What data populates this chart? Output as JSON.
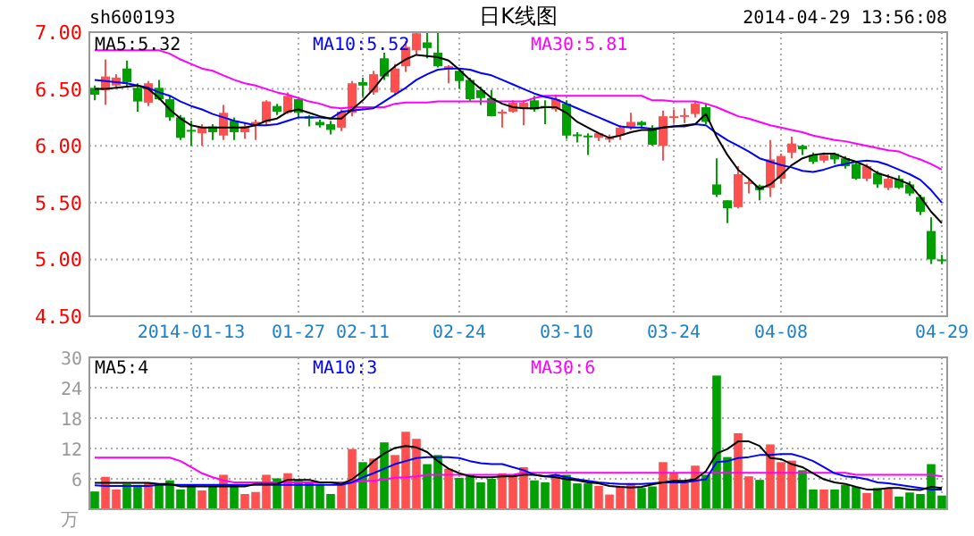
{
  "chart_data": [
    {
      "type": "candlestick",
      "title": "日K线图",
      "annotations": [
        "sh600193",
        "2014-04-29 13:56:08"
      ],
      "categories": [
        null,
        null,
        null,
        null,
        null,
        null,
        null,
        null,
        null,
        "2014-01-13",
        null,
        null,
        null,
        null,
        null,
        null,
        null,
        null,
        null,
        "01-27",
        null,
        null,
        null,
        null,
        null,
        "02-11",
        null,
        null,
        null,
        null,
        null,
        null,
        null,
        null,
        "02-24",
        null,
        null,
        null,
        null,
        null,
        null,
        null,
        null,
        null,
        "03-10",
        null,
        null,
        null,
        null,
        null,
        null,
        null,
        null,
        null,
        "03-24",
        null,
        null,
        null,
        null,
        null,
        null,
        null,
        null,
        null,
        "04-08",
        null,
        null,
        null,
        null,
        null,
        null,
        null,
        null,
        null,
        null,
        null,
        null,
        null,
        null,
        "04-29"
      ],
      "ohlc": [
        [
          6.51,
          6.53,
          6.4,
          6.45
        ],
        [
          6.49,
          6.76,
          6.36,
          6.61
        ],
        [
          6.53,
          6.63,
          6.5,
          6.6
        ],
        [
          6.68,
          6.75,
          6.52,
          6.56
        ],
        [
          6.51,
          6.55,
          6.3,
          6.39
        ],
        [
          6.38,
          6.57,
          6.35,
          6.55
        ],
        [
          6.51,
          6.58,
          6.4,
          6.41
        ],
        [
          6.41,
          6.44,
          6.22,
          6.25
        ],
        [
          6.25,
          6.27,
          6.05,
          6.07
        ],
        [
          6.14,
          6.22,
          6.0,
          6.13
        ],
        [
          6.11,
          6.19,
          6.0,
          6.16
        ],
        [
          6.17,
          6.19,
          6.05,
          6.12
        ],
        [
          6.09,
          6.36,
          6.05,
          6.29
        ],
        [
          6.22,
          6.25,
          6.05,
          6.12
        ],
        [
          6.12,
          6.2,
          6.06,
          6.17
        ],
        [
          6.18,
          6.23,
          6.05,
          6.21
        ],
        [
          6.21,
          6.4,
          6.18,
          6.39
        ],
        [
          6.35,
          6.37,
          6.27,
          6.3
        ],
        [
          6.29,
          6.47,
          6.28,
          6.44
        ],
        [
          6.41,
          6.42,
          6.25,
          6.29
        ],
        [
          6.26,
          6.27,
          6.17,
          6.24
        ],
        [
          6.21,
          6.23,
          6.16,
          6.18
        ],
        [
          6.19,
          6.22,
          6.1,
          6.14
        ],
        [
          6.16,
          6.32,
          6.13,
          6.3
        ],
        [
          6.29,
          6.57,
          6.26,
          6.55
        ],
        [
          6.56,
          6.6,
          6.43,
          6.53
        ],
        [
          6.47,
          6.66,
          6.45,
          6.63
        ],
        [
          6.77,
          6.82,
          6.58,
          6.61
        ],
        [
          6.47,
          6.72,
          6.45,
          6.68
        ],
        [
          6.7,
          6.92,
          6.65,
          6.87
        ],
        [
          6.84,
          7.0,
          6.8,
          6.99
        ],
        [
          6.91,
          7.0,
          6.77,
          6.86
        ],
        [
          6.82,
          7.0,
          6.69,
          6.7
        ],
        [
          6.67,
          6.71,
          6.55,
          6.7
        ],
        [
          6.66,
          6.66,
          6.5,
          6.57
        ],
        [
          6.58,
          6.6,
          6.39,
          6.41
        ],
        [
          6.49,
          6.52,
          6.36,
          6.42
        ],
        [
          6.42,
          6.49,
          6.26,
          6.26
        ],
        [
          6.29,
          6.32,
          6.16,
          6.3
        ],
        [
          6.3,
          6.4,
          6.29,
          6.38
        ],
        [
          6.33,
          6.4,
          6.18,
          6.38
        ],
        [
          6.4,
          6.44,
          6.3,
          6.32
        ],
        [
          6.35,
          6.4,
          6.19,
          6.34
        ],
        [
          6.32,
          6.45,
          6.3,
          6.41
        ],
        [
          6.37,
          6.4,
          6.06,
          6.09
        ],
        [
          6.1,
          6.12,
          6.03,
          6.09
        ],
        [
          6.09,
          6.11,
          5.92,
          6.08
        ],
        [
          6.07,
          6.12,
          6.04,
          6.11
        ],
        [
          6.06,
          6.1,
          6.03,
          6.07
        ],
        [
          6.09,
          6.18,
          6.05,
          6.16
        ],
        [
          6.16,
          6.29,
          6.14,
          6.21
        ],
        [
          6.21,
          6.22,
          6.15,
          6.18
        ],
        [
          6.16,
          6.18,
          6.0,
          6.01
        ],
        [
          6.0,
          6.31,
          5.87,
          6.26
        ],
        [
          6.25,
          6.32,
          6.2,
          6.26
        ],
        [
          6.26,
          6.33,
          6.2,
          6.27
        ],
        [
          6.28,
          6.39,
          6.25,
          6.37
        ],
        [
          6.34,
          6.37,
          6.19,
          6.21
        ],
        [
          5.66,
          5.89,
          5.55,
          5.57
        ],
        [
          5.52,
          5.52,
          5.32,
          5.45
        ],
        [
          5.46,
          5.82,
          5.45,
          5.75
        ],
        [
          5.67,
          5.71,
          5.58,
          5.68
        ],
        [
          5.65,
          5.66,
          5.52,
          5.61
        ],
        [
          5.63,
          6.05,
          5.55,
          5.88
        ],
        [
          5.71,
          5.93,
          5.67,
          5.91
        ],
        [
          5.94,
          6.08,
          5.89,
          6.02
        ],
        [
          6.0,
          6.01,
          5.92,
          5.97
        ],
        [
          5.92,
          5.94,
          5.84,
          5.86
        ],
        [
          5.87,
          5.94,
          5.85,
          5.92
        ],
        [
          5.93,
          5.94,
          5.84,
          5.88
        ],
        [
          5.89,
          5.91,
          5.8,
          5.82
        ],
        [
          5.84,
          5.86,
          5.7,
          5.71
        ],
        [
          5.71,
          5.84,
          5.69,
          5.82
        ],
        [
          5.76,
          5.78,
          5.63,
          5.66
        ],
        [
          5.63,
          5.75,
          5.61,
          5.71
        ],
        [
          5.71,
          5.74,
          5.62,
          5.63
        ],
        [
          5.66,
          5.69,
          5.56,
          5.58
        ],
        [
          5.55,
          5.57,
          5.39,
          5.42
        ],
        [
          5.25,
          5.37,
          4.96,
          5.0
        ],
        [
          5.0,
          5.04,
          4.96,
          4.99
        ]
      ],
      "colors": [
        "#00a000",
        "#ff5050",
        "#ff5050",
        "#00a000",
        "#00a000",
        "#ff5050",
        "#00a000",
        "#00a000",
        "#00a000",
        "#00a000",
        "#ff5050",
        "#00a000",
        "#ff5050",
        "#00a000",
        "#ff5050",
        "#ff5050",
        "#ff5050",
        "#00a000",
        "#ff5050",
        "#00a000",
        "#00a000",
        "#00a000",
        "#00a000",
        "#ff5050",
        "#ff5050",
        "#00a000",
        "#ff5050",
        "#00a000",
        "#ff5050",
        "#ff5050",
        "#ff5050",
        "#00a000",
        "#00a000",
        "#ff5050",
        "#00a000",
        "#00a000",
        "#00a000",
        "#00a000",
        "#ff5050",
        "#ff5050",
        "#ff5050",
        "#00a000",
        "#00a000",
        "#ff5050",
        "#00a000",
        "#00a000",
        "#00a000",
        "#ff5050",
        "#ff5050",
        "#ff5050",
        "#ff5050",
        "#00a000",
        "#00a000",
        "#ff5050",
        "#ff5050",
        "#ff5050",
        "#ff5050",
        "#00a000",
        "#00a000",
        "#00a000",
        "#ff5050",
        "#ff5050",
        "#00a000",
        "#ff5050",
        "#ff5050",
        "#ff5050",
        "#00a000",
        "#00a000",
        "#ff5050",
        "#00a000",
        "#00a000",
        "#00a000",
        "#ff5050",
        "#00a000",
        "#ff5050",
        "#00a000",
        "#00a000",
        "#00a000",
        "#00a000",
        "#00a000"
      ],
      "series": [
        {
          "name": "MA5:5.32",
          "type": "line",
          "color": "#000000",
          "values": [
            6.5,
            6.5,
            6.51,
            6.52,
            6.53,
            6.5,
            6.42,
            6.32,
            6.24,
            6.18,
            6.16,
            6.16,
            6.16,
            6.16,
            6.16,
            6.18,
            6.22,
            6.24,
            6.3,
            6.32,
            6.29,
            6.26,
            6.24,
            6.24,
            6.32,
            6.4,
            6.5,
            6.62,
            6.7,
            6.76,
            6.8,
            6.79,
            6.78,
            6.75,
            6.67,
            6.58,
            6.5,
            6.42,
            6.37,
            6.34,
            6.33,
            6.33,
            6.34,
            6.34,
            6.29,
            6.21,
            6.16,
            6.11,
            6.07,
            6.09,
            6.12,
            6.14,
            6.14,
            6.16,
            6.17,
            6.18,
            6.19,
            6.28,
            6.08,
            5.92,
            5.79,
            5.71,
            5.62,
            5.66,
            5.74,
            5.83,
            5.89,
            5.92,
            5.93,
            5.93,
            5.89,
            5.86,
            5.82,
            5.76,
            5.73,
            5.7,
            5.66,
            5.55,
            5.42,
            5.32
          ]
        },
        {
          "name": "MA10:5.52",
          "type": "line",
          "color": "#0000ff",
          "values": [
            6.58,
            6.57,
            6.56,
            6.55,
            6.53,
            6.51,
            6.47,
            6.44,
            6.39,
            6.35,
            6.32,
            6.28,
            6.25,
            6.22,
            6.2,
            6.18,
            6.18,
            6.19,
            6.22,
            6.25,
            6.25,
            6.25,
            6.24,
            6.3,
            6.31,
            6.32,
            6.33,
            6.39,
            6.45,
            6.51,
            6.58,
            6.63,
            6.67,
            6.68,
            6.68,
            6.67,
            6.64,
            6.62,
            6.58,
            6.54,
            6.5,
            6.46,
            6.43,
            6.41,
            6.37,
            6.33,
            6.29,
            6.25,
            6.21,
            6.17,
            6.16,
            6.16,
            6.15,
            6.16,
            6.17,
            6.17,
            6.19,
            6.18,
            6.11,
            6.05,
            6.0,
            5.95,
            5.89,
            5.86,
            5.83,
            5.81,
            5.78,
            5.77,
            5.79,
            5.82,
            5.84,
            5.86,
            5.87,
            5.86,
            5.83,
            5.79,
            5.75,
            5.7,
            5.61,
            5.5
          ]
        },
        {
          "name": "MA30:5.81",
          "type": "line",
          "color": "#ff00ff",
          "values": [
            6.84,
            6.84,
            6.84,
            6.84,
            6.84,
            6.84,
            6.84,
            6.81,
            6.76,
            6.72,
            6.68,
            6.66,
            6.62,
            6.58,
            6.55,
            6.53,
            6.5,
            6.47,
            6.45,
            6.42,
            6.39,
            6.37,
            6.34,
            6.33,
            6.34,
            6.34,
            6.34,
            6.34,
            6.37,
            6.38,
            6.38,
            6.38,
            6.39,
            6.39,
            6.39,
            6.39,
            6.39,
            6.39,
            6.39,
            6.39,
            6.39,
            6.42,
            6.44,
            6.44,
            6.44,
            6.44,
            6.44,
            6.44,
            6.44,
            6.44,
            6.44,
            6.44,
            6.4,
            6.4,
            6.39,
            6.39,
            6.39,
            6.37,
            6.34,
            6.3,
            6.26,
            6.24,
            6.21,
            6.18,
            6.16,
            6.14,
            6.12,
            6.09,
            6.07,
            6.05,
            6.04,
            6.02,
            6.0,
            5.98,
            5.96,
            5.95,
            5.91,
            5.88,
            5.84,
            5.79
          ]
        }
      ],
      "ylim": [
        4.5,
        7.0
      ],
      "yticks": [
        {
          "value": 4.5,
          "label": "4.50"
        },
        {
          "value": 5.0,
          "label": "5.00"
        },
        {
          "value": 5.5,
          "label": "5.50"
        },
        {
          "value": 6.0,
          "label": "6.00"
        },
        {
          "value": 6.5,
          "label": "6.50"
        },
        {
          "value": 7.0,
          "label": "7.00"
        }
      ],
      "grid": true,
      "legend": "top left"
    },
    {
      "type": "bar",
      "ylabel": "万",
      "tick_labels": "y",
      "categories": [
        null,
        null,
        null,
        null,
        null,
        null,
        null,
        null,
        null,
        null,
        null,
        null,
        null,
        null,
        null,
        null,
        null,
        null,
        null,
        null,
        null,
        null,
        null,
        null,
        null,
        null,
        null,
        null,
        null,
        null,
        null,
        null,
        null,
        null,
        null,
        null,
        null,
        null,
        null,
        null,
        null,
        null,
        null,
        null,
        null,
        null,
        null,
        null,
        null,
        null,
        null,
        null,
        null,
        null,
        null,
        null,
        null,
        null,
        null,
        null,
        null,
        null,
        null,
        null,
        null,
        null,
        null,
        null,
        null,
        null,
        null,
        null,
        null,
        null,
        null,
        null,
        null,
        null,
        null,
        null
      ],
      "values": [
        3.5,
        6.4,
        3.9,
        5.0,
        4.8,
        5.3,
        5.0,
        5.7,
        3.9,
        4.9,
        3.7,
        4.5,
        6.8,
        4.8,
        3.0,
        3.4,
        6.8,
        6.1,
        7.1,
        5.6,
        5.3,
        5.0,
        3.0,
        4.8,
        11.9,
        9.3,
        10.0,
        13.2,
        10.7,
        15.3,
        13.9,
        8.9,
        10.7,
        8.0,
        6.2,
        6.8,
        5.3,
        6.0,
        7.1,
        6.5,
        8.3,
        5.7,
        5.3,
        6.8,
        6.8,
        5.1,
        5.1,
        4.6,
        2.9,
        4.5,
        5.0,
        4.2,
        4.5,
        9.3,
        7.1,
        5.3,
        8.6,
        6.8,
        26.4,
        10.3,
        15.0,
        6.5,
        5.8,
        12.8,
        9.3,
        9.6,
        7.7,
        3.9,
        3.9,
        3.9,
        4.8,
        4.4,
        3.2,
        4.2,
        4.2,
        2.5,
        3.3,
        3.0,
        8.9,
        2.7
      ],
      "colors": [
        "#00a000",
        "#ff5050",
        "#ff5050",
        "#00a000",
        "#00a000",
        "#ff5050",
        "#00a000",
        "#00a000",
        "#00a000",
        "#00a000",
        "#ff5050",
        "#00a000",
        "#ff5050",
        "#00a000",
        "#ff5050",
        "#ff5050",
        "#ff5050",
        "#00a000",
        "#ff5050",
        "#00a000",
        "#00a000",
        "#00a000",
        "#00a000",
        "#ff5050",
        "#ff5050",
        "#00a000",
        "#ff5050",
        "#00a000",
        "#ff5050",
        "#ff5050",
        "#ff5050",
        "#00a000",
        "#00a000",
        "#ff5050",
        "#00a000",
        "#00a000",
        "#00a000",
        "#00a000",
        "#ff5050",
        "#ff5050",
        "#ff5050",
        "#00a000",
        "#00a000",
        "#ff5050",
        "#00a000",
        "#00a000",
        "#00a000",
        "#ff5050",
        "#ff5050",
        "#ff5050",
        "#ff5050",
        "#00a000",
        "#00a000",
        "#ff5050",
        "#ff5050",
        "#ff5050",
        "#ff5050",
        "#00a000",
        "#00a000",
        "#00a000",
        "#ff5050",
        "#ff5050",
        "#00a000",
        "#ff5050",
        "#ff5050",
        "#ff5050",
        "#00a000",
        "#00a000",
        "#ff5050",
        "#00a000",
        "#00a000",
        "#00a000",
        "#ff5050",
        "#00a000",
        "#ff5050",
        "#00a000",
        "#00a000",
        "#00a000",
        "#00a000",
        "#00a000"
      ],
      "series": [
        {
          "name": "MA5:4",
          "type": "line",
          "color": "#000000",
          "values": [
            5.2,
            5.2,
            5.2,
            5.2,
            5.2,
            5.2,
            5.0,
            5.0,
            4.5,
            4.5,
            4.5,
            4.5,
            4.5,
            4.5,
            4.5,
            5.0,
            5.0,
            5.0,
            5.8,
            5.8,
            5.8,
            5.3,
            5.3,
            5.0,
            5.9,
            7.5,
            9.5,
            11.0,
            12.1,
            12.5,
            12.2,
            11.3,
            9.5,
            8.0,
            7.1,
            6.5,
            6.3,
            6.3,
            6.5,
            6.5,
            6.8,
            6.8,
            6.5,
            6.3,
            5.9,
            5.7,
            5.3,
            5.1,
            4.6,
            4.4,
            4.3,
            4.4,
            4.9,
            5.3,
            5.6,
            5.6,
            5.9,
            7.5,
            11.0,
            11.9,
            13.4,
            13.4,
            12.5,
            10.1,
            9.9,
            8.9,
            8.3,
            7.1,
            5.9,
            5.3,
            5.0,
            4.4,
            3.9,
            3.9,
            4.2,
            4.2,
            3.9,
            3.8,
            4.4,
            4.2
          ]
        },
        {
          "name": "MA10:3",
          "type": "line",
          "color": "#0000ff",
          "values": [
            4.7,
            4.6,
            4.6,
            4.6,
            4.6,
            4.6,
            4.8,
            4.8,
            4.8,
            4.8,
            4.8,
            4.8,
            4.8,
            4.8,
            4.8,
            4.8,
            4.8,
            4.8,
            4.8,
            4.8,
            4.8,
            4.8,
            4.8,
            4.8,
            5.3,
            6.3,
            7.1,
            8.0,
            8.9,
            9.5,
            10.1,
            10.3,
            10.3,
            10.3,
            10.1,
            9.5,
            9.1,
            8.9,
            8.9,
            8.3,
            7.7,
            6.8,
            6.5,
            6.8,
            6.3,
            5.9,
            5.6,
            5.3,
            5.1,
            5.0,
            5.0,
            5.0,
            5.1,
            5.3,
            5.3,
            5.3,
            5.6,
            5.9,
            9.3,
            9.5,
            10.1,
            10.3,
            10.7,
            10.7,
            10.9,
            10.9,
            10.3,
            9.5,
            8.3,
            7.1,
            6.5,
            6.3,
            5.9,
            5.3,
            5.1,
            4.8,
            4.5,
            4.2,
            3.9,
            3.9
          ]
        },
        {
          "name": "MA30:6",
          "type": "line",
          "color": "#ff00ff",
          "values": [
            10.2,
            10.2,
            10.2,
            10.2,
            10.2,
            10.2,
            10.2,
            10.2,
            9.5,
            8.3,
            7.1,
            6.3,
            5.7,
            5.3,
            5.3,
            5.3,
            5.3,
            5.3,
            5.3,
            5.3,
            5.3,
            5.3,
            5.3,
            5.3,
            5.3,
            5.6,
            5.6,
            5.9,
            6.2,
            6.3,
            6.5,
            6.8,
            6.8,
            6.8,
            6.8,
            6.8,
            6.8,
            6.8,
            6.8,
            6.8,
            7.2,
            7.2,
            7.2,
            7.2,
            7.2,
            7.2,
            7.2,
            7.2,
            7.2,
            7.2,
            7.2,
            7.2,
            7.2,
            7.2,
            7.2,
            7.2,
            7.2,
            7.2,
            7.2,
            7.2,
            7.2,
            7.2,
            7.2,
            7.2,
            7.2,
            7.2,
            7.2,
            7.2,
            7.2,
            7.2,
            7.2,
            6.8,
            6.8,
            6.8,
            6.8,
            6.8,
            6.8,
            6.8,
            6.8,
            6.5
          ]
        }
      ],
      "ylim": [
        0,
        30
      ],
      "yticks": [
        6,
        12,
        18,
        24,
        30
      ],
      "grid": true,
      "legend": "top left"
    }
  ]
}
